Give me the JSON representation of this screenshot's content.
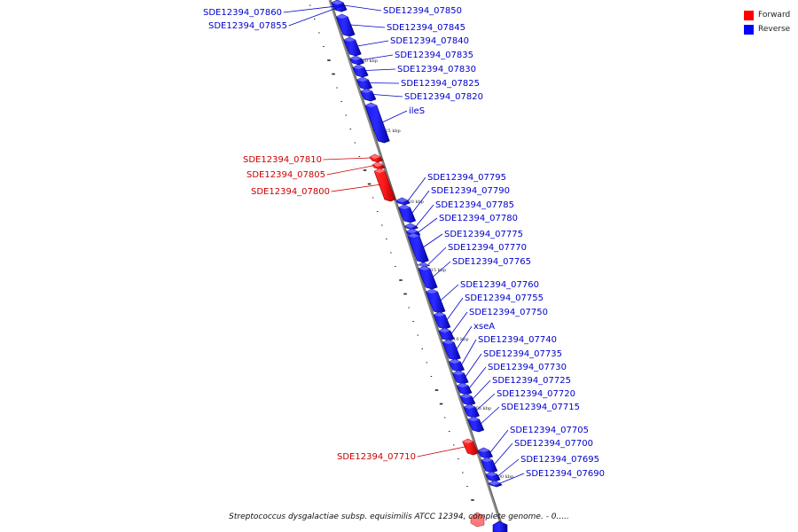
{
  "colors": {
    "forward": "#ff0000",
    "reverse": "#0000ff",
    "forward_text": "#cc0000",
    "reverse_text": "#0000cc"
  },
  "legend": [
    {
      "label": "Forward",
      "color": "#ff0000"
    },
    {
      "label": "Reverse",
      "color": "#0000ff"
    }
  ],
  "caption": "Streptococcus dysgalactiae subsp. equisimilis ATCC 12394, complete genome. - 0.....",
  "ticks": [
    {
      "label": "1530 kbp",
      "kbp": 1530
    },
    {
      "label": "1525 kbp",
      "kbp": 1525
    },
    {
      "label": "1520 kbp",
      "kbp": 1520
    },
    {
      "label": "1515 kbp",
      "kbp": 1515
    },
    {
      "label": "1510 kbp",
      "kbp": 1510
    },
    {
      "label": "1505 kbp",
      "kbp": 1505
    },
    {
      "label": "1500 kbp",
      "kbp": 1500
    }
  ],
  "genes": [
    {
      "name": "SDE12394_07860",
      "strand": "reverse"
    },
    {
      "name": "SDE12394_07855",
      "strand": "reverse"
    },
    {
      "name": "SDE12394_07850",
      "strand": "reverse"
    },
    {
      "name": "SDE12394_07845",
      "strand": "reverse"
    },
    {
      "name": "SDE12394_07840",
      "strand": "reverse"
    },
    {
      "name": "SDE12394_07835",
      "strand": "reverse"
    },
    {
      "name": "SDE12394_07830",
      "strand": "reverse"
    },
    {
      "name": "SDE12394_07825",
      "strand": "reverse"
    },
    {
      "name": "SDE12394_07820",
      "strand": "reverse"
    },
    {
      "name": "ileS",
      "strand": "reverse"
    },
    {
      "name": "SDE12394_07810",
      "strand": "forward"
    },
    {
      "name": "SDE12394_07805",
      "strand": "forward"
    },
    {
      "name": "SDE12394_07800",
      "strand": "forward"
    },
    {
      "name": "SDE12394_07795",
      "strand": "reverse"
    },
    {
      "name": "SDE12394_07790",
      "strand": "reverse"
    },
    {
      "name": "SDE12394_07785",
      "strand": "reverse"
    },
    {
      "name": "SDE12394_07780",
      "strand": "reverse"
    },
    {
      "name": "SDE12394_07775",
      "strand": "reverse"
    },
    {
      "name": "SDE12394_07770",
      "strand": "reverse"
    },
    {
      "name": "SDE12394_07765",
      "strand": "reverse"
    },
    {
      "name": "SDE12394_07760",
      "strand": "reverse"
    },
    {
      "name": "SDE12394_07755",
      "strand": "reverse"
    },
    {
      "name": "SDE12394_07750",
      "strand": "reverse"
    },
    {
      "name": "xseA",
      "strand": "reverse"
    },
    {
      "name": "SDE12394_07740",
      "strand": "reverse"
    },
    {
      "name": "SDE12394_07735",
      "strand": "reverse"
    },
    {
      "name": "SDE12394_07730",
      "strand": "reverse"
    },
    {
      "name": "SDE12394_07725",
      "strand": "reverse"
    },
    {
      "name": "SDE12394_07720",
      "strand": "reverse"
    },
    {
      "name": "SDE12394_07715",
      "strand": "reverse"
    },
    {
      "name": "SDE12394_07710",
      "strand": "forward"
    },
    {
      "name": "SDE12394_07705",
      "strand": "reverse"
    },
    {
      "name": "SDE12394_07700",
      "strand": "reverse"
    },
    {
      "name": "SDE12394_07695",
      "strand": "reverse"
    },
    {
      "name": "SDE12394_07690",
      "strand": "reverse"
    }
  ]
}
